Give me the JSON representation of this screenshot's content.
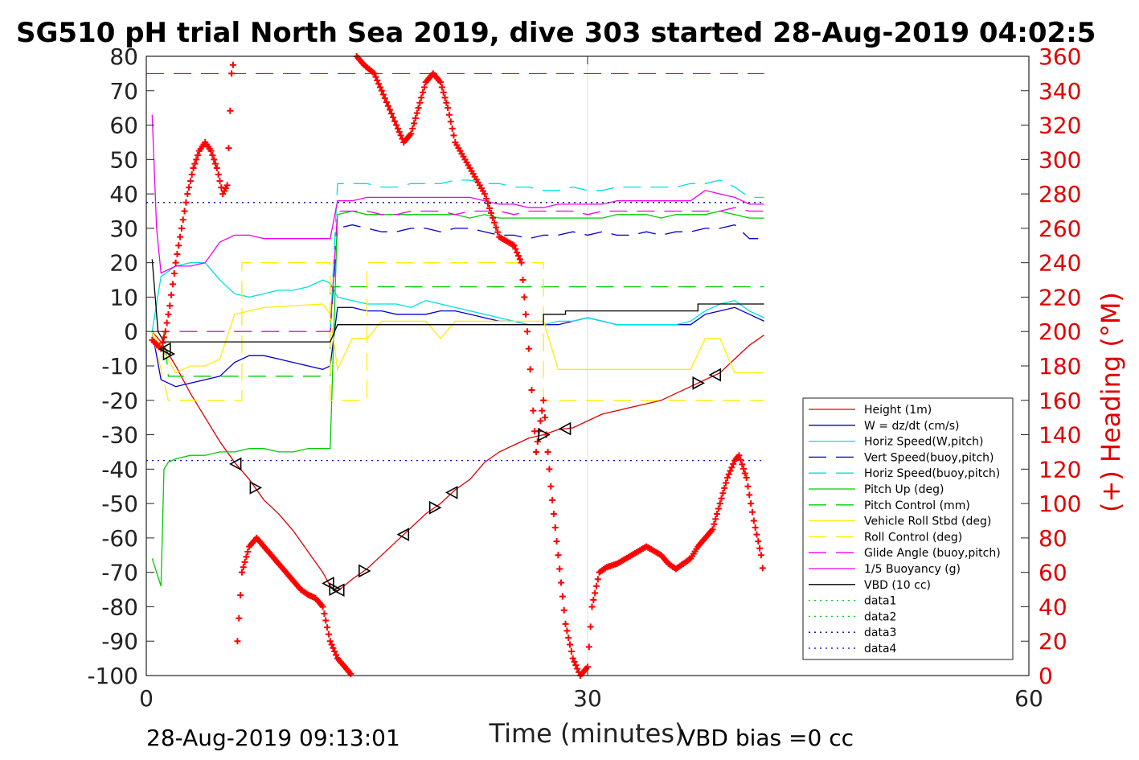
{
  "chart_data": {
    "type": "line",
    "title": "SG510 pH trial North Sea 2019, dive 303 started 28-Aug-2019 04:02:5",
    "xlabel": "Time (minutes)",
    "ylabel_right": "(+) Heading (°M)",
    "xlim": [
      0,
      60
    ],
    "ylim_left": [
      -100,
      80
    ],
    "ylim_right": [
      0,
      360
    ],
    "xticks": [
      "0",
      "30",
      "60"
    ],
    "yticks_left": [
      "80",
      "70",
      "60",
      "50",
      "40",
      "30",
      "20",
      "10",
      "0",
      "-10",
      "-20",
      "-30",
      "-40",
      "-50",
      "-60",
      "-70",
      "-80",
      "-90",
      "-100"
    ],
    "yticks_right": [
      "360",
      "340",
      "320",
      "300",
      "280",
      "260",
      "240",
      "220",
      "200",
      "180",
      "160",
      "140",
      "120",
      "100",
      "80",
      "60",
      "40",
      "20",
      "0"
    ],
    "grid": "x",
    "legend_position": "lower-right",
    "colors": {
      "heading": "#ff0000",
      "right_axis": "#e00000"
    },
    "footer_left": "28-Aug-2019 09:13:01",
    "footer_right": "VBD bias =0 cc",
    "series": [
      {
        "name": "Height (1m)",
        "color": "#e00000",
        "style": "solid",
        "x": [
          0.4,
          1,
          2,
          3,
          4,
          5,
          6,
          7,
          8,
          9,
          10,
          11,
          12,
          12.5,
          13,
          14,
          15,
          16,
          17,
          18,
          19,
          20,
          21,
          22,
          23,
          24,
          25,
          26,
          27,
          28,
          29,
          30,
          31,
          32,
          33,
          34,
          35,
          36,
          37,
          38,
          39,
          40,
          41,
          42
        ],
        "y": [
          0,
          -3,
          -10,
          -18,
          -25,
          -32,
          -38,
          -43,
          -49,
          -53,
          -58,
          -64,
          -70,
          -74,
          -75.5,
          -72,
          -69,
          -65,
          -61,
          -57,
          -53,
          -50,
          -46,
          -43,
          -38,
          -35,
          -33,
          -31,
          -30,
          -28.5,
          -28,
          -26,
          -24,
          -23,
          -22,
          -21,
          -20,
          -18,
          -16,
          -14,
          -12,
          -8,
          -4,
          -1
        ]
      },
      {
        "name": "W = dz/dt (cm/s)",
        "color": "#0000cc",
        "style": "solid",
        "x": [
          0.4,
          1,
          2,
          3,
          4,
          5,
          6,
          7,
          8,
          9,
          10,
          11,
          12,
          12.5,
          13,
          14,
          15,
          16,
          17,
          18,
          19,
          20,
          21,
          22,
          23,
          24,
          25,
          26,
          27,
          28,
          29,
          30,
          31,
          32,
          33,
          34,
          35,
          36,
          37,
          38,
          39,
          40,
          41,
          42
        ],
        "y": [
          0,
          -14,
          -16,
          -15,
          -14,
          -13,
          -9,
          -7,
          -7,
          -8,
          -9,
          -10,
          -11,
          -10,
          7,
          7,
          6,
          6,
          5,
          5,
          5,
          6,
          6,
          5,
          4,
          3,
          3,
          2,
          2,
          2,
          3,
          4,
          3,
          2,
          2,
          2,
          2,
          2,
          2,
          5,
          6,
          7,
          5,
          3
        ]
      },
      {
        "name": "Horiz Speed(W,pitch)",
        "color": "#00e0e0",
        "style": "solid",
        "x": [
          0.4,
          1,
          2,
          3,
          4,
          5,
          6,
          7,
          8,
          9,
          10,
          11,
          12,
          12.5,
          13,
          14,
          15,
          16,
          17,
          18,
          19,
          20,
          21,
          22,
          23,
          24,
          25,
          26,
          27,
          28,
          29,
          30,
          31,
          32,
          33,
          34,
          35,
          36,
          37,
          38,
          39,
          40,
          41,
          42
        ],
        "y": [
          0,
          16,
          19,
          20,
          20,
          15,
          11,
          10,
          11,
          12,
          12,
          13,
          15,
          14,
          10,
          9,
          8,
          8,
          8,
          7,
          9,
          8,
          7,
          6,
          5,
          4,
          3,
          2,
          2,
          3,
          3,
          4,
          3,
          2,
          2,
          2,
          2,
          2,
          3,
          6,
          8,
          9,
          6,
          4
        ]
      },
      {
        "name": "Vert Speed(buoy,pitch)",
        "color": "#0000cc",
        "style": "dashed",
        "x": [
          12.5,
          13,
          14,
          15,
          16,
          17,
          18,
          19,
          20,
          21,
          22,
          23,
          24,
          25,
          26,
          27,
          28,
          29,
          30,
          31,
          32,
          33,
          34,
          35,
          36,
          37,
          38,
          39,
          40,
          41,
          42
        ],
        "y": [
          0,
          30,
          31,
          30,
          29,
          29,
          30,
          30,
          29,
          30,
          30,
          29,
          28,
          28,
          27,
          28,
          28,
          29,
          28,
          29,
          28,
          28,
          29,
          28,
          29,
          29,
          30,
          30,
          31,
          27,
          27
        ]
      },
      {
        "name": "Horiz Speed(buoy,pitch)",
        "color": "#00e0e0",
        "style": "dashed",
        "x": [
          12.5,
          13,
          14,
          15,
          16,
          17,
          18,
          19,
          20,
          21,
          22,
          23,
          24,
          25,
          26,
          27,
          28,
          29,
          30,
          31,
          32,
          33,
          34,
          35,
          36,
          37,
          38,
          39,
          40,
          41,
          42
        ],
        "y": [
          0,
          43,
          43,
          43,
          42,
          42,
          43,
          43,
          43,
          44,
          44,
          43,
          43,
          42,
          42,
          41,
          41,
          42,
          41,
          41,
          42,
          42,
          42,
          42,
          42,
          43,
          43,
          44,
          42,
          39,
          39
        ]
      },
      {
        "name": "Pitch Up (deg)",
        "color": "#00cc00",
        "style": "solid",
        "x": [
          0.4,
          1,
          1.2,
          1.5,
          2,
          3,
          4,
          5,
          6,
          7,
          8,
          9,
          10,
          11,
          12,
          12.5,
          13,
          14,
          15,
          16,
          17,
          18,
          19,
          20,
          21,
          22,
          23,
          24,
          25,
          26,
          27,
          28,
          29,
          30,
          31,
          32,
          33,
          34,
          35,
          36,
          37,
          38,
          39,
          40,
          41,
          42
        ],
        "y": [
          -66,
          -74,
          -40,
          -38,
          -37,
          -36,
          -36,
          -35,
          -35,
          -34,
          -34,
          -35,
          -35,
          -34,
          -34,
          -34,
          34,
          35,
          34,
          34,
          34,
          34,
          34,
          34,
          34,
          33,
          34,
          33,
          33,
          33,
          33,
          33,
          33,
          33,
          33,
          34,
          34,
          34,
          33,
          34,
          34,
          34,
          35,
          34,
          33,
          33
        ]
      },
      {
        "name": "Pitch Control (mm)",
        "color": "#00cc00",
        "style": "dashed",
        "x": [
          0.4,
          1.2,
          1.5,
          12.5,
          12.5,
          42
        ],
        "y": [
          0,
          0,
          -13,
          -13,
          13,
          13
        ]
      },
      {
        "name": "Vehicle Roll Stbd (deg)",
        "color": "#ffee00",
        "style": "solid",
        "x": [
          0.4,
          2,
          3,
          4,
          5,
          6,
          7,
          8,
          12,
          12.5,
          13,
          14,
          15,
          16,
          17,
          19,
          20,
          21,
          22,
          23,
          24,
          25,
          26,
          27,
          28,
          30,
          32,
          34,
          36,
          37,
          38,
          39,
          40,
          41,
          42
        ],
        "y": [
          0,
          -12,
          -10,
          -10,
          -8,
          5,
          6,
          7,
          8,
          5,
          -11,
          -2,
          -2,
          3,
          3,
          3,
          -2,
          3,
          3,
          3,
          3,
          3,
          3,
          3,
          -11,
          -11,
          -11,
          -11,
          -11,
          -11,
          -2,
          -2,
          -12,
          -12,
          -12
        ]
      },
      {
        "name": "Roll Control (deg)",
        "color": "#ffee00",
        "style": "dashed",
        "x": [
          0.4,
          1.5,
          6.5,
          6.5,
          12.5,
          12.5,
          15,
          15,
          27,
          27,
          42
        ],
        "y": [
          0,
          -20,
          -20,
          20,
          20,
          -20,
          -20,
          20,
          20,
          -20,
          -20
        ]
      },
      {
        "name": "Glide Angle (buoy,pitch)",
        "color": "#ee00ee",
        "style": "dashed",
        "x": [
          0.4,
          12.5,
          13,
          14,
          15,
          16,
          17,
          18,
          19,
          20,
          21,
          22,
          23,
          24,
          25,
          26,
          27,
          28,
          29,
          30,
          31,
          32,
          33,
          34,
          35,
          36,
          37,
          38,
          39,
          40,
          41,
          42
        ],
        "y": [
          0,
          0,
          35,
          35,
          35,
          34,
          34,
          35,
          35,
          35,
          34,
          35,
          35,
          35,
          34,
          35,
          35,
          35,
          35,
          34,
          35,
          35,
          35,
          35,
          35,
          35,
          35,
          35,
          35,
          36,
          35,
          35
        ]
      },
      {
        "name": "1/5 Buoyancy (g)",
        "color": "#ee00ee",
        "style": "solid",
        "x": [
          0.4,
          0.7,
          1,
          2,
          3,
          4,
          5,
          6,
          7,
          8,
          9,
          10,
          11,
          12,
          12.5,
          13,
          14,
          15,
          16,
          17,
          18,
          19,
          20,
          21,
          22,
          23,
          24,
          25,
          26,
          27,
          28,
          29,
          30,
          31,
          32,
          33,
          34,
          35,
          36,
          37,
          38,
          39,
          40,
          41,
          42
        ],
        "y": [
          63,
          30,
          17,
          19,
          19,
          20,
          26,
          28,
          28,
          27,
          27,
          27,
          27,
          27,
          27,
          38,
          38,
          39,
          39,
          39,
          39,
          39,
          39,
          39,
          39,
          38,
          37,
          37,
          36,
          36,
          37,
          37,
          37,
          37,
          38,
          38,
          38,
          38,
          38,
          38,
          41,
          40,
          39,
          37,
          37
        ]
      },
      {
        "name": "VBD (10 cc)",
        "color": "#000000",
        "style": "solid",
        "x": [
          0.4,
          0.8,
          1.2,
          2,
          12.5,
          13,
          14,
          27,
          27,
          28.5,
          28.5,
          37.5,
          37.5,
          42
        ],
        "y": [
          21,
          0,
          -3,
          -3,
          -3,
          2,
          2,
          2,
          5,
          5,
          6,
          6,
          8,
          8
        ]
      },
      {
        "name": "data1",
        "color": "#00cc00",
        "style": "dotted",
        "x": [],
        "y": []
      },
      {
        "name": "data2",
        "color": "#00cc00",
        "style": "dotted",
        "x": [],
        "y": []
      },
      {
        "name": "data3",
        "color": "#000088",
        "style": "dotted",
        "x": [
          0,
          42
        ],
        "y": [
          37.5,
          37.5
        ]
      },
      {
        "name": "data4",
        "color": "#0000cc",
        "style": "dotted",
        "x": [
          0,
          42
        ],
        "y": [
          -37.5,
          -37.5
        ]
      }
    ],
    "reference_lines_right": [
      {
        "value": 350,
        "color": "#cc0000",
        "style": "dashed",
        "x": [
          0,
          42
        ]
      }
    ],
    "heading": {
      "x": [
        0.4,
        1,
        1.3,
        1.6,
        2,
        2.4,
        2.8,
        3.2,
        3.6,
        4,
        4.4,
        4.8,
        5.2,
        5.5,
        5.8,
        6,
        6.2,
        6.5,
        7,
        7.5,
        8,
        8.5,
        9,
        9.5,
        10,
        10.5,
        11,
        11.5,
        12,
        12.5,
        13,
        13.5,
        14,
        14.3,
        14.8,
        15.5,
        16,
        17,
        17.5,
        18,
        18.5,
        19,
        19.5,
        20,
        20.5,
        21,
        22,
        23,
        24,
        25,
        25.5,
        26,
        26.5,
        27,
        27.5,
        28,
        28.5,
        29,
        29.5,
        30,
        30.3,
        30.8,
        31.3,
        32,
        33,
        34,
        35,
        35.5,
        36,
        36.5,
        37,
        37.5,
        38,
        38.5,
        39,
        39.5,
        40,
        40.3,
        40.8,
        41.3,
        41.8,
        42
      ],
      "y": [
        195,
        190,
        200,
        215,
        240,
        260,
        280,
        295,
        305,
        310,
        305,
        295,
        280,
        285,
        350,
        360,
        20,
        60,
        75,
        80,
        75,
        70,
        65,
        60,
        55,
        50,
        47,
        45,
        40,
        20,
        10,
        5,
        0,
        360,
        355,
        350,
        340,
        320,
        310,
        315,
        330,
        345,
        350,
        345,
        330,
        310,
        295,
        280,
        255,
        250,
        240,
        190,
        130,
        160,
        110,
        70,
        30,
        10,
        0,
        5,
        40,
        60,
        63,
        65,
        70,
        75,
        70,
        65,
        62,
        65,
        68,
        75,
        80,
        85,
        100,
        115,
        125,
        128,
        115,
        90,
        70,
        55
      ]
    }
  }
}
